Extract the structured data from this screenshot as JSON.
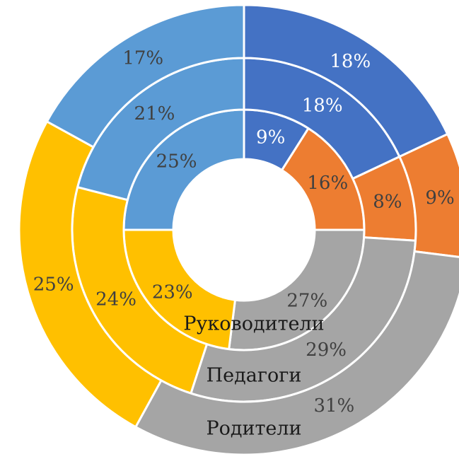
{
  "chart_data": {
    "type": "donut",
    "colors": [
      "#4472c4",
      "#ed7d31",
      "#a5a5a5",
      "#ffc000",
      "#5b9bd5"
    ],
    "series": [
      {
        "name": "Руководители",
        "values": [
          9,
          16,
          27,
          23,
          25
        ],
        "value_labels": [
          "9%",
          "16%",
          "27%",
          "23%",
          "25%"
        ]
      },
      {
        "name": "Педагоги",
        "values": [
          18,
          8,
          29,
          24,
          21
        ],
        "value_labels": [
          "18%",
          "8%",
          "29%",
          "24%",
          "21%"
        ]
      },
      {
        "name": "Родители",
        "values": [
          18,
          9,
          31,
          25,
          17
        ],
        "value_labels": [
          "18%",
          "9%",
          "31%",
          "25%",
          "17%"
        ]
      }
    ]
  }
}
